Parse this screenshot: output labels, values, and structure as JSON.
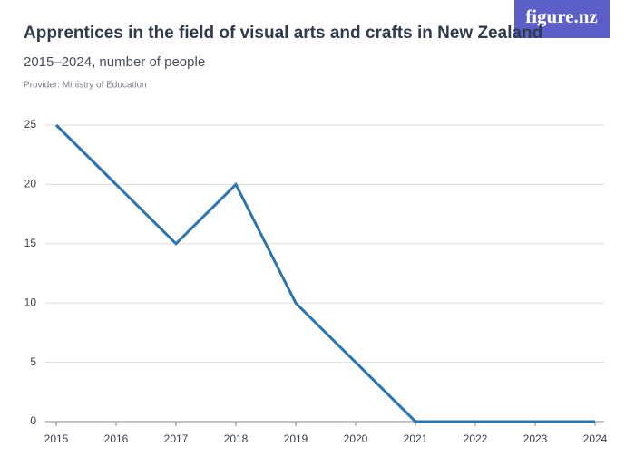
{
  "logo": "figure.nz",
  "chart_data": {
    "type": "line",
    "title": "Apprentices in the field of visual arts and crafts in New Zealand",
    "subtitle": "2015–2024, number of people",
    "provider": "Provider: Ministry of Education",
    "categories": [
      "2015",
      "2016",
      "2017",
      "2018",
      "2019",
      "2020",
      "2021",
      "2022",
      "2023",
      "2024"
    ],
    "series": [
      {
        "name": "Apprentices",
        "color": "#2b74b3",
        "values": [
          25,
          20,
          15,
          20,
          10,
          5,
          0,
          0,
          0,
          0
        ]
      }
    ],
    "ylim": [
      0,
      25
    ],
    "yticks": [
      0,
      5,
      10,
      15,
      20,
      25
    ],
    "grid": true
  }
}
